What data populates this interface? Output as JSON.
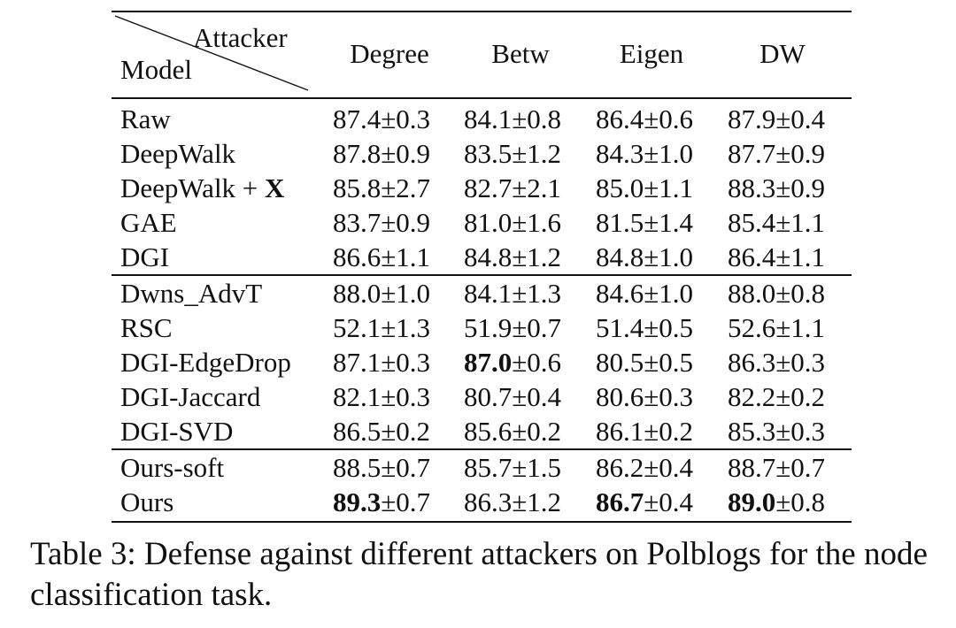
{
  "table": {
    "corner_top_label": "Attacker",
    "corner_bottom_label": "Model",
    "columns": [
      "Degree",
      "Betw",
      "Eigen",
      "DW"
    ],
    "groups": [
      [
        {
          "model": "Raw",
          "model_suffix": "",
          "cells": [
            {
              "mean": "87.4",
              "sd": "±0.3",
              "best": false
            },
            {
              "mean": "84.1",
              "sd": "±0.8",
              "best": false
            },
            {
              "mean": "86.4",
              "sd": "±0.6",
              "best": false
            },
            {
              "mean": "87.9",
              "sd": "±0.4",
              "best": false
            }
          ]
        },
        {
          "model": "DeepWalk",
          "model_suffix": "",
          "cells": [
            {
              "mean": "87.8",
              "sd": "±0.9",
              "best": false
            },
            {
              "mean": "83.5",
              "sd": "±1.2",
              "best": false
            },
            {
              "mean": "84.3",
              "sd": "±1.0",
              "best": false
            },
            {
              "mean": "87.7",
              "sd": "±0.9",
              "best": false
            }
          ]
        },
        {
          "model": "DeepWalk + ",
          "model_suffix": "X",
          "cells": [
            {
              "mean": "85.8",
              "sd": "±2.7",
              "best": false
            },
            {
              "mean": "82.7",
              "sd": "±2.1",
              "best": false
            },
            {
              "mean": "85.0",
              "sd": "±1.1",
              "best": false
            },
            {
              "mean": "88.3",
              "sd": "±0.9",
              "best": false
            }
          ]
        },
        {
          "model": "GAE",
          "model_suffix": "",
          "cells": [
            {
              "mean": "83.7",
              "sd": "±0.9",
              "best": false
            },
            {
              "mean": "81.0",
              "sd": "±1.6",
              "best": false
            },
            {
              "mean": "81.5",
              "sd": "±1.4",
              "best": false
            },
            {
              "mean": "85.4",
              "sd": "±1.1",
              "best": false
            }
          ]
        },
        {
          "model": "DGI",
          "model_suffix": "",
          "cells": [
            {
              "mean": "86.6",
              "sd": "±1.1",
              "best": false
            },
            {
              "mean": "84.8",
              "sd": "±1.2",
              "best": false
            },
            {
              "mean": "84.8",
              "sd": "±1.0",
              "best": false
            },
            {
              "mean": "86.4",
              "sd": "±1.1",
              "best": false
            }
          ]
        }
      ],
      [
        {
          "model": "Dwns_AdvT",
          "model_suffix": "",
          "cells": [
            {
              "mean": "88.0",
              "sd": "±1.0",
              "best": false
            },
            {
              "mean": "84.1",
              "sd": "±1.3",
              "best": false
            },
            {
              "mean": "84.6",
              "sd": "±1.0",
              "best": false
            },
            {
              "mean": "88.0",
              "sd": "±0.8",
              "best": false
            }
          ]
        },
        {
          "model": "RSC",
          "model_suffix": "",
          "cells": [
            {
              "mean": "52.1",
              "sd": "±1.3",
              "best": false
            },
            {
              "mean": "51.9",
              "sd": "±0.7",
              "best": false
            },
            {
              "mean": "51.4",
              "sd": "±0.5",
              "best": false
            },
            {
              "mean": "52.6",
              "sd": "±1.1",
              "best": false
            }
          ]
        },
        {
          "model": "DGI-EdgeDrop",
          "model_suffix": "",
          "cells": [
            {
              "mean": "87.1",
              "sd": "±0.3",
              "best": false
            },
            {
              "mean": "87.0",
              "sd": "±0.6",
              "best": true
            },
            {
              "mean": "80.5",
              "sd": "±0.5",
              "best": false
            },
            {
              "mean": "86.3",
              "sd": "±0.3",
              "best": false
            }
          ]
        },
        {
          "model": "DGI-Jaccard",
          "model_suffix": "",
          "cells": [
            {
              "mean": "82.1",
              "sd": "±0.3",
              "best": false
            },
            {
              "mean": "80.7",
              "sd": "±0.4",
              "best": false
            },
            {
              "mean": "80.6",
              "sd": "±0.3",
              "best": false
            },
            {
              "mean": "82.2",
              "sd": "±0.2",
              "best": false
            }
          ]
        },
        {
          "model": "DGI-SVD",
          "model_suffix": "",
          "cells": [
            {
              "mean": "86.5",
              "sd": "±0.2",
              "best": false
            },
            {
              "mean": "85.6",
              "sd": "±0.2",
              "best": false
            },
            {
              "mean": "86.1",
              "sd": "±0.2",
              "best": false
            },
            {
              "mean": "85.3",
              "sd": "±0.3",
              "best": false
            }
          ]
        }
      ],
      [
        {
          "model": "Ours-soft",
          "model_suffix": "",
          "cells": [
            {
              "mean": "88.5",
              "sd": "±0.7",
              "best": false
            },
            {
              "mean": "85.7",
              "sd": "±1.5",
              "best": false
            },
            {
              "mean": "86.2",
              "sd": "±0.4",
              "best": false
            },
            {
              "mean": "88.7",
              "sd": "±0.7",
              "best": false
            }
          ]
        },
        {
          "model": "Ours",
          "model_suffix": "",
          "cells": [
            {
              "mean": "89.3",
              "sd": "±0.7",
              "best": true
            },
            {
              "mean": "86.3",
              "sd": "±1.2",
              "best": false
            },
            {
              "mean": "86.7",
              "sd": "±0.4",
              "best": true
            },
            {
              "mean": "89.0",
              "sd": "±0.8",
              "best": true
            }
          ]
        }
      ]
    ]
  },
  "caption": "Table 3: Defense against different attackers on Polblogs for the node classification task."
}
